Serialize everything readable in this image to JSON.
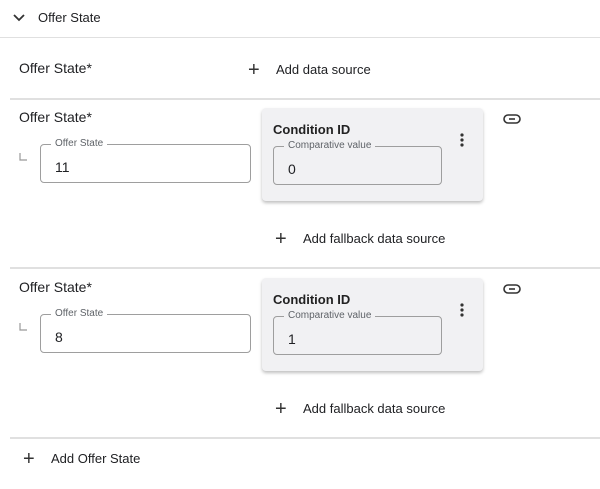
{
  "header": {
    "title": "Offer State",
    "chevron": "chevron-down-icon"
  },
  "primary": {
    "label": "Offer State*",
    "add_data_source": "Add data source"
  },
  "entries": [
    {
      "label": "Offer State*",
      "field_label": "Offer State",
      "value": "11",
      "condition_title": "Condition ID",
      "comparative_label": "Comparative value",
      "comparative_value": "0",
      "add_fallback": "Add fallback data source"
    },
    {
      "label": "Offer State*",
      "field_label": "Offer State",
      "value": "8",
      "condition_title": "Condition ID",
      "comparative_label": "Comparative value",
      "comparative_value": "1",
      "add_fallback": "Add fallback data source"
    }
  ],
  "footer": {
    "add_label": "Add Offer State"
  }
}
